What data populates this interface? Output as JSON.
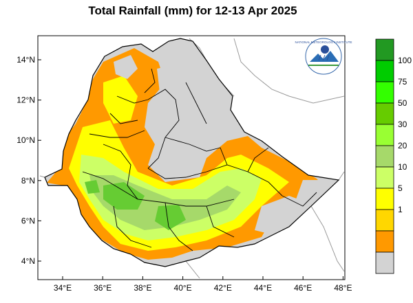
{
  "title": "Total Rainfall (mm) for 12-13 Apr 2025",
  "x_ticks": [
    "34°E",
    "36°E",
    "38°E",
    "40°E",
    "42°E",
    "44°E",
    "46°E",
    "48°E"
  ],
  "y_ticks": [
    "14°N",
    "12°N",
    "10°N",
    "8°N",
    "6°N",
    "4°N"
  ],
  "legend": {
    "labels": [
      "1",
      "5",
      "10",
      "20",
      "30",
      "50",
      "75",
      "100"
    ],
    "colors": [
      "#d3d3d3",
      "#ff9900",
      "#ffd700",
      "#ffff00",
      "#ccff66",
      "#a6d96a",
      "#99ff33",
      "#66cc00",
      "#33ff00",
      "#00cc00",
      "#229922"
    ]
  },
  "colors": {
    "land_dry": "#d3d3d3",
    "orange": "#ff9900",
    "yellow": "#ffff00",
    "light_green": "#ccff66",
    "mid_green": "#a6d96a",
    "green": "#66cc33",
    "boundary": "#000000",
    "outside_border": "#888888"
  },
  "logo": {
    "text": "NATIONAL METEOROLOGY INSTITUTE"
  }
}
